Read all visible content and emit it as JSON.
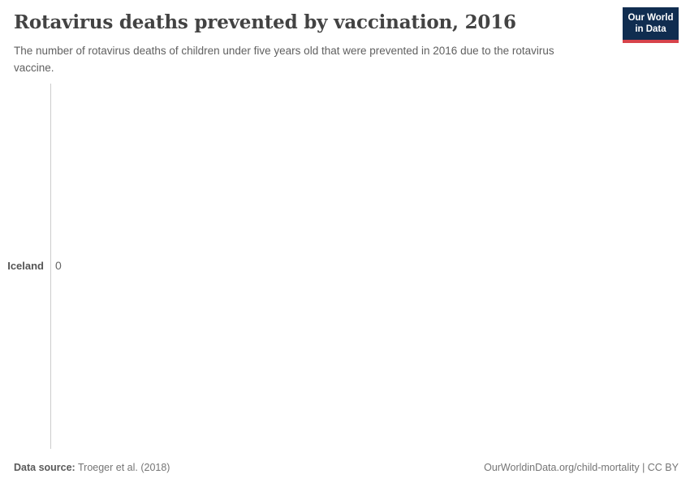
{
  "header": {
    "title": "Rotavirus deaths prevented by vaccination, 2016",
    "subtitle": "The number of rotavirus deaths of children under five years old that were prevented in 2016 due to the rotavirus vaccine."
  },
  "logo": {
    "line1": "Our World",
    "line2": "in Data"
  },
  "chart_data": {
    "type": "bar",
    "orientation": "horizontal",
    "title": "Rotavirus deaths prevented by vaccination, 2016",
    "categories": [
      "Iceland"
    ],
    "values": [
      0
    ],
    "value_labels": [
      "0"
    ],
    "xlabel": "",
    "ylabel": "",
    "xlim": [
      0,
      1
    ],
    "grid": false,
    "legend": false
  },
  "footer": {
    "datasource_label": "Data source:",
    "datasource_value": "Troeger et al. (2018)",
    "attribution": "OurWorldinData.org/child-mortality | CC BY"
  },
  "colors": {
    "logo-bg": "#102d50",
    "logo-accent": "#d7434b",
    "axis": "#cccccc",
    "bar": "#3360a9",
    "title-text": "#434343",
    "subtitle-text": "#606060",
    "label-text": "#555555",
    "value-text": "#666666",
    "footer-text": "#757575"
  }
}
